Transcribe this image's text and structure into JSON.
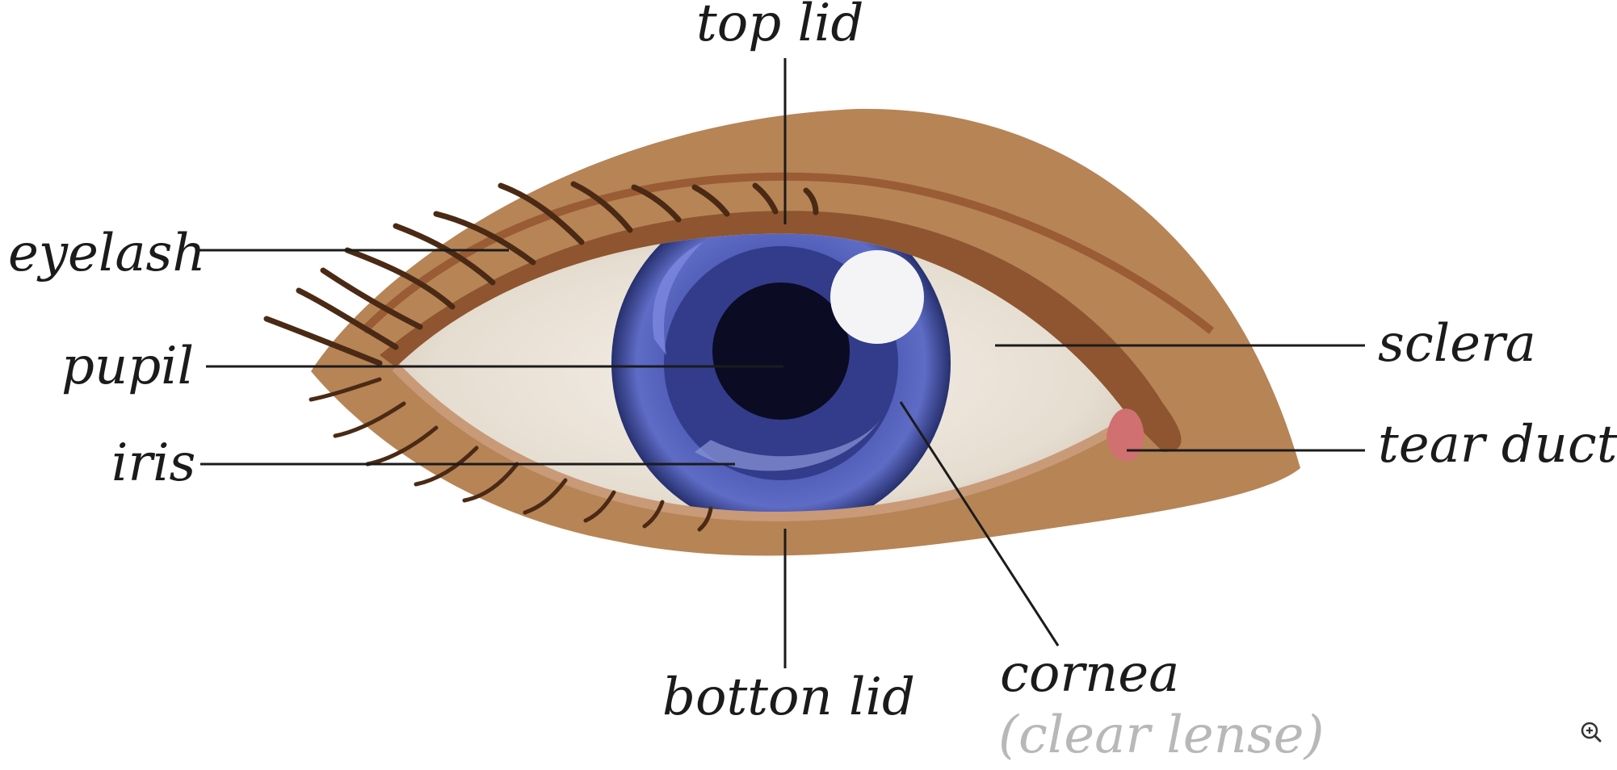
{
  "labels": {
    "top_lid": "top lid",
    "eyelash": "eyelash",
    "pupil": "pupil",
    "iris": "iris",
    "sclera": "sclera",
    "tear_duct": "tear duct",
    "bottom_lid": "botton lid",
    "cornea_line1": "cornea",
    "cornea_line2": "(clear lense)"
  },
  "colors": {
    "skin": "#b78456",
    "lid_crease": "#8e5530",
    "lash": "#4a2a14",
    "sclera": "#ece4da",
    "iris": "#3f4ea3",
    "pupil": "#0b0b23",
    "tear_duct": "#d07070"
  },
  "icons": {
    "zoom": "zoom-in-icon"
  }
}
